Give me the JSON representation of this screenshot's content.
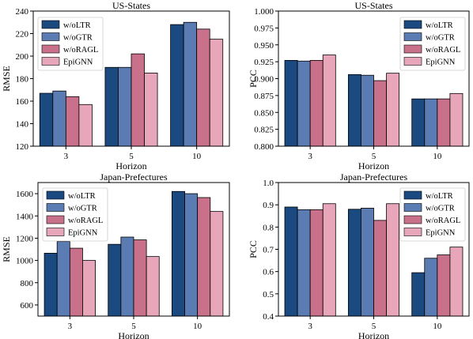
{
  "colors": [
    "#1a4a80",
    "#5b7cb2",
    "#c9708b",
    "#e8a6ba"
  ],
  "chart_data": [
    {
      "type": "bar",
      "title": "US-States",
      "xlabel": "Horizon",
      "ylabel": "RMSE",
      "categories": [
        "3",
        "5",
        "10"
      ],
      "ylim": [
        120,
        240
      ],
      "yticks": [
        120,
        140,
        160,
        180,
        200,
        220,
        240
      ],
      "ytick_labels": [
        "120",
        "140",
        "160",
        "180",
        "200",
        "220",
        "240"
      ],
      "legend": "top-left",
      "series": [
        {
          "name": "w/oLTR",
          "values": [
            167,
            190,
            228
          ]
        },
        {
          "name": "w/oGTR",
          "values": [
            169,
            190,
            230
          ]
        },
        {
          "name": "w/oRAGL",
          "values": [
            164,
            202,
            224
          ]
        },
        {
          "name": "EpiGNN",
          "values": [
            157,
            185,
            215
          ]
        }
      ]
    },
    {
      "type": "bar",
      "title": "US-States",
      "xlabel": "Horizon",
      "ylabel": "PCC",
      "categories": [
        "3",
        "5",
        "10"
      ],
      "ylim": [
        0.8,
        1.0
      ],
      "yticks": [
        0.8,
        0.825,
        0.85,
        0.875,
        0.9,
        0.925,
        0.95,
        0.975,
        1.0
      ],
      "ytick_labels": [
        "0.800",
        "0.825",
        "0.850",
        "0.875",
        "0.900",
        "0.925",
        "0.950",
        "0.975",
        "1.000"
      ],
      "legend": "top-right",
      "series": [
        {
          "name": "w/oLTR",
          "values": [
            0.927,
            0.906,
            0.87
          ]
        },
        {
          "name": "w/oGTR",
          "values": [
            0.926,
            0.905,
            0.87
          ]
        },
        {
          "name": "w/oRAGL",
          "values": [
            0.927,
            0.897,
            0.87
          ]
        },
        {
          "name": "EpiGNN",
          "values": [
            0.935,
            0.908,
            0.878
          ]
        }
      ]
    },
    {
      "type": "bar",
      "title": "Japan-Prefectures",
      "xlabel": "Horizon",
      "ylabel": "RMSE",
      "categories": [
        "3",
        "5",
        "10"
      ],
      "ylim": [
        500,
        1700
      ],
      "yticks": [
        600,
        800,
        1000,
        1200,
        1400,
        1600
      ],
      "ytick_labels": [
        "600",
        "800",
        "1000",
        "1200",
        "1400",
        "1600"
      ],
      "legend": "top-left",
      "series": [
        {
          "name": "w/oLTR",
          "values": [
            1065,
            1145,
            1620
          ]
        },
        {
          "name": "w/oGTR",
          "values": [
            1170,
            1210,
            1600
          ]
        },
        {
          "name": "w/oRAGL",
          "values": [
            1110,
            1185,
            1565
          ]
        },
        {
          "name": "EpiGNN",
          "values": [
            1000,
            1035,
            1440
          ]
        }
      ]
    },
    {
      "type": "bar",
      "title": "Japan-Prefectures",
      "xlabel": "Horizon",
      "ylabel": "PCC",
      "categories": [
        "3",
        "5",
        "10"
      ],
      "ylim": [
        0.4,
        1.0
      ],
      "yticks": [
        0.4,
        0.5,
        0.6,
        0.7,
        0.8,
        0.9,
        1.0
      ],
      "ytick_labels": [
        "0.4",
        "0.5",
        "0.6",
        "0.7",
        "0.8",
        "0.9",
        "1.0"
      ],
      "legend": "right",
      "series": [
        {
          "name": "w/oLTR",
          "values": [
            0.89,
            0.88,
            0.595
          ]
        },
        {
          "name": "w/oGTR",
          "values": [
            0.878,
            0.885,
            0.66
          ]
        },
        {
          "name": "w/oRAGL",
          "values": [
            0.878,
            0.83,
            0.675
          ]
        },
        {
          "name": "EpiGNN",
          "values": [
            0.905,
            0.905,
            0.71
          ]
        }
      ]
    }
  ]
}
